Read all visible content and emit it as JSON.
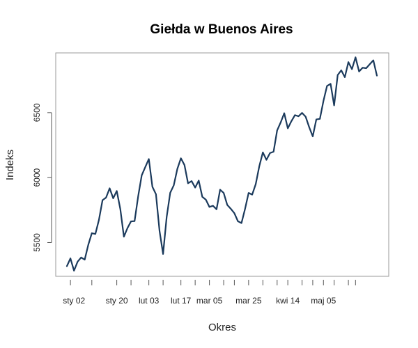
{
  "chart_data": {
    "type": "line",
    "title": "Giełda w Buenos Aires",
    "xlabel": "Okres",
    "ylabel": "Indeks",
    "x_tick_labels": [
      "sty 02",
      "sty 20",
      "lut 03",
      "lut 17",
      "mar 05",
      "mar 25",
      "kwi 14",
      "maj 05"
    ],
    "x_label_points": [
      2,
      14,
      23,
      32,
      40,
      51,
      62,
      72
    ],
    "x_tick_points": [
      1,
      7,
      14,
      18,
      23,
      27,
      32,
      36,
      40,
      44,
      47,
      51,
      55,
      59,
      62,
      66,
      69,
      72,
      75,
      79,
      81
    ],
    "y_ticks": [
      5500,
      6000,
      6500
    ],
    "ylim": [
      5240,
      6960
    ],
    "grid": false,
    "color": "#1b3a5c",
    "series": [
      {
        "values": [
          5318,
          5378,
          5283,
          5352,
          5385,
          5368,
          5482,
          5572,
          5566,
          5675,
          5826,
          5846,
          5918,
          5841,
          5897,
          5757,
          5545,
          5611,
          5663,
          5665,
          5855,
          6017,
          6081,
          6143,
          5929,
          5872,
          5590,
          5412,
          5696,
          5883,
          5941,
          6067,
          6149,
          6097,
          5956,
          5973,
          5923,
          5977,
          5852,
          5830,
          5774,
          5783,
          5756,
          5907,
          5882,
          5790,
          5760,
          5726,
          5664,
          5650,
          5759,
          5882,
          5869,
          5950,
          6088,
          6194,
          6137,
          6189,
          6199,
          6363,
          6425,
          6496,
          6379,
          6434,
          6481,
          6472,
          6498,
          6469,
          6388,
          6317,
          6448,
          6452,
          6590,
          6705,
          6722,
          6556,
          6790,
          6826,
          6773,
          6889,
          6835,
          6926,
          6817,
          6846,
          6842,
          6873,
          6903,
          6785
        ]
      }
    ]
  }
}
